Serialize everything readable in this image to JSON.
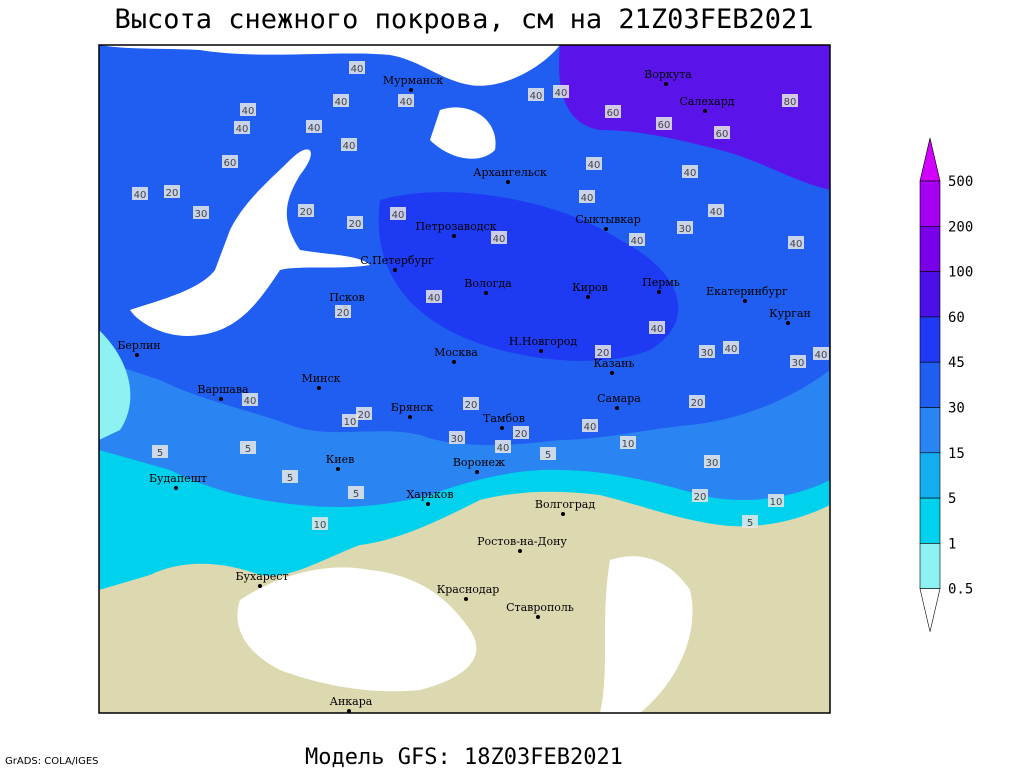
{
  "title": "Высота снежного покрова, см на 21Z03FEB2021",
  "footer": "Модель GFS: 18Z03FEB2021",
  "credit": "GrADS: COLA/IGES",
  "legend": {
    "labels": [
      "500",
      "200",
      "100",
      "60",
      "45",
      "30",
      "15",
      "5",
      "1",
      "0.5"
    ],
    "colors": [
      "#d200ff",
      "#a600f2",
      "#7a00ea",
      "#4a10e6",
      "#1e3af2",
      "#1f5ef0",
      "#2a84f2",
      "#14aef0",
      "#00d2ee",
      "#8ef2f2",
      "#ffffff"
    ]
  },
  "cities": [
    "Мурманск",
    "Воркута",
    "Салехард",
    "Архангельск",
    "Петрозаводск",
    "Сыктывкар",
    "С.Петербург",
    "Вологда",
    "Киров",
    "Пермь",
    "Екатеринбург",
    "Курган",
    "Псков",
    "Берлин",
    "Н.Новгород",
    "Москва",
    "Казань",
    "Варшава",
    "Минск",
    "Самара",
    "Брянск",
    "Тамбов",
    "Киев",
    "Воронеж",
    "Будапешт",
    "Харьков",
    "Волгоград",
    "Ростов-на-Дону",
    "Бухарест",
    "Краснодар",
    "Ставрополь",
    "Анкара"
  ],
  "contour_labels": [
    40,
    40,
    40,
    40,
    40,
    60,
    60,
    60,
    80,
    40,
    40,
    40,
    40,
    60,
    40,
    20,
    30,
    20,
    20,
    40,
    40,
    40,
    40,
    40,
    30,
    40,
    40,
    40,
    40,
    20,
    20,
    40,
    30,
    40,
    30,
    40,
    40,
    20,
    10,
    20,
    20,
    30,
    20,
    40,
    40,
    10,
    5,
    5,
    5,
    30,
    5,
    5,
    20,
    10,
    5,
    10
  ]
}
